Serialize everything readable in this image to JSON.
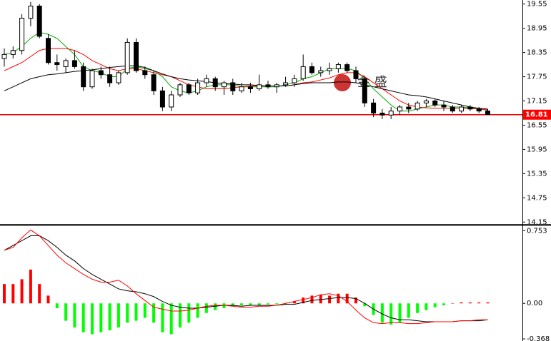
{
  "chart_data": [
    {
      "type": "candlestick",
      "watermark": "金 盛",
      "ylim": [
        14.12,
        19.65
      ],
      "yticks": [
        19.55,
        18.95,
        18.35,
        17.75,
        17.15,
        16.55,
        15.95,
        15.35,
        14.75,
        14.15
      ],
      "price_line": 16.81,
      "price_line_color": "#ff0000",
      "open": [
        18.2,
        18.3,
        18.4,
        19.2,
        19.5,
        18.7,
        18.1,
        18.0,
        18.15,
        18.0,
        17.5,
        17.9,
        17.8,
        17.6,
        17.85,
        18.6,
        17.9,
        17.8,
        17.4,
        17.0,
        17.3,
        17.55,
        17.35,
        17.6,
        17.7,
        17.5,
        17.6,
        17.4,
        17.5,
        17.45,
        17.55,
        17.5,
        17.55,
        17.6,
        17.7,
        18.0,
        17.85,
        17.9,
        17.95,
        18.05,
        17.9,
        17.7,
        17.1,
        16.85,
        16.8,
        16.9,
        17.0,
        16.95,
        17.1,
        17.15,
        17.05,
        17.0,
        16.9,
        17.0,
        16.95,
        16.9
      ],
      "high": [
        18.45,
        18.5,
        19.3,
        19.6,
        19.55,
        18.8,
        18.3,
        18.2,
        18.4,
        18.1,
        17.95,
        18.0,
        18.0,
        17.9,
        18.7,
        18.7,
        18.0,
        17.9,
        17.5,
        17.4,
        17.6,
        17.6,
        17.7,
        17.8,
        17.75,
        17.65,
        17.7,
        17.6,
        17.6,
        17.8,
        17.65,
        17.6,
        17.75,
        17.8,
        18.3,
        18.1,
        18.0,
        18.1,
        18.1,
        18.1,
        18.0,
        17.75,
        17.2,
        16.95,
        17.0,
        17.05,
        17.1,
        17.15,
        17.2,
        17.2,
        17.15,
        17.05,
        17.05,
        17.05,
        17.0,
        16.95
      ],
      "low": [
        18.0,
        18.2,
        18.3,
        19.0,
        18.7,
        18.05,
        17.9,
        17.85,
        17.95,
        17.4,
        17.45,
        17.7,
        17.5,
        17.55,
        17.8,
        17.85,
        17.7,
        17.3,
        16.9,
        16.9,
        17.25,
        17.3,
        17.3,
        17.5,
        17.4,
        17.3,
        17.3,
        17.35,
        17.35,
        17.4,
        17.45,
        17.35,
        17.5,
        17.5,
        17.65,
        17.8,
        17.75,
        17.8,
        17.85,
        17.85,
        17.6,
        17.0,
        16.75,
        16.7,
        16.7,
        16.8,
        16.85,
        16.9,
        17.0,
        17.0,
        16.9,
        16.85,
        16.85,
        16.9,
        16.85,
        16.8
      ],
      "close": [
        18.3,
        18.4,
        19.2,
        19.5,
        18.75,
        18.1,
        18.05,
        18.15,
        18.0,
        17.5,
        17.9,
        17.8,
        17.6,
        17.85,
        18.6,
        17.9,
        17.8,
        17.4,
        17.0,
        17.3,
        17.55,
        17.35,
        17.6,
        17.7,
        17.5,
        17.6,
        17.4,
        17.5,
        17.45,
        17.55,
        17.5,
        17.55,
        17.6,
        17.7,
        18.0,
        17.85,
        17.9,
        17.95,
        18.05,
        17.9,
        17.7,
        17.1,
        16.85,
        16.8,
        16.9,
        17.0,
        16.95,
        17.1,
        17.15,
        17.05,
        17.0,
        16.9,
        17.0,
        16.95,
        16.9,
        16.81
      ],
      "series": [
        {
          "color": "#00aa00",
          "values": [
            18.3,
            18.35,
            18.5,
            18.7,
            18.85,
            18.8,
            18.7,
            18.5,
            18.3,
            18.0,
            17.9,
            17.85,
            17.75,
            17.75,
            17.95,
            18.0,
            17.95,
            17.9,
            17.75,
            17.5,
            17.4,
            17.35,
            17.4,
            17.5,
            17.55,
            17.55,
            17.55,
            17.5,
            17.5,
            17.5,
            17.5,
            17.5,
            17.55,
            17.6,
            17.7,
            17.75,
            17.85,
            17.95,
            17.95,
            17.95,
            17.9,
            17.7,
            17.45,
            17.25,
            17.05,
            16.9,
            16.9,
            16.95,
            17.0,
            17.05,
            17.05,
            17.0,
            17.0,
            16.98,
            16.95,
            16.92
          ]
        },
        {
          "color": "#ff0000",
          "values": [
            17.9,
            18.0,
            18.1,
            18.25,
            18.4,
            18.45,
            18.45,
            18.45,
            18.4,
            18.3,
            18.15,
            18.05,
            17.95,
            17.9,
            17.95,
            17.95,
            17.9,
            17.85,
            17.8,
            17.75,
            17.65,
            17.55,
            17.5,
            17.45,
            17.45,
            17.45,
            17.48,
            17.5,
            17.52,
            17.52,
            17.52,
            17.52,
            17.52,
            17.55,
            17.6,
            17.62,
            17.67,
            17.72,
            17.8,
            17.85,
            17.85,
            17.75,
            17.6,
            17.45,
            17.3,
            17.15,
            17.05,
            17.0,
            16.98,
            16.97,
            16.97,
            16.97,
            16.97,
            16.96,
            16.95,
            16.93
          ]
        },
        {
          "color": "#000000",
          "values": [
            17.4,
            17.5,
            17.6,
            17.7,
            17.75,
            17.8,
            17.82,
            17.85,
            17.88,
            17.9,
            17.92,
            17.95,
            17.98,
            18.0,
            18.02,
            18.02,
            17.98,
            17.9,
            17.82,
            17.75,
            17.7,
            17.67,
            17.65,
            17.63,
            17.6,
            17.58,
            17.57,
            17.55,
            17.55,
            17.53,
            17.52,
            17.52,
            17.52,
            17.55,
            17.58,
            17.6,
            17.6,
            17.6,
            17.62,
            17.62,
            17.6,
            17.55,
            17.5,
            17.45,
            17.4,
            17.35,
            17.3,
            17.28,
            17.25,
            17.2,
            17.15,
            17.1,
            17.05,
            17.0,
            16.97,
            16.95
          ]
        }
      ]
    },
    {
      "type": "macd",
      "ylim": [
        -0.39,
        0.8
      ],
      "yticks": [
        0.753,
        {
          "value": 0,
          "label": "0.00"
        },
        -0.368
      ],
      "up_color": "#ff0000",
      "down_color": "#00ff00",
      "histogram": [
        0.2,
        0.2,
        0.25,
        0.35,
        0.2,
        0.08,
        -0.05,
        -0.18,
        -0.25,
        -0.3,
        -0.32,
        -0.3,
        -0.28,
        -0.25,
        -0.2,
        -0.18,
        -0.15,
        -0.2,
        -0.3,
        -0.32,
        -0.25,
        -0.2,
        -0.15,
        -0.1,
        -0.07,
        -0.05,
        -0.03,
        -0.02,
        -0.02,
        -0.02,
        -0.01,
        -0.01,
        -0.01,
        0.02,
        0.06,
        0.08,
        0.09,
        0.08,
        0.1,
        0.1,
        0.06,
        -0.03,
        -0.12,
        -0.2,
        -0.22,
        -0.2,
        -0.15,
        -0.1,
        -0.07,
        -0.04,
        -0.02,
        0.0,
        0.01,
        0.01,
        0.01,
        0.01
      ],
      "series": [
        {
          "color": "#000000",
          "values": [
            0.55,
            0.6,
            0.65,
            0.7,
            0.7,
            0.65,
            0.58,
            0.5,
            0.44,
            0.36,
            0.3,
            0.25,
            0.2,
            0.15,
            0.13,
            0.12,
            0.1,
            0.07,
            0.02,
            -0.02,
            -0.04,
            -0.05,
            -0.05,
            -0.04,
            -0.03,
            -0.02,
            -0.02,
            -0.03,
            -0.02,
            -0.02,
            -0.02,
            -0.02,
            -0.01,
            -0.01,
            0.01,
            0.03,
            0.04,
            0.05,
            0.06,
            0.06,
            0.05,
            0.0,
            -0.06,
            -0.11,
            -0.15,
            -0.17,
            -0.17,
            -0.18,
            -0.19,
            -0.19,
            -0.19,
            -0.19,
            -0.18,
            -0.18,
            -0.18,
            -0.17
          ]
        },
        {
          "color": "#ff0000",
          "values": [
            0.55,
            0.58,
            0.68,
            0.76,
            0.7,
            0.6,
            0.5,
            0.42,
            0.36,
            0.3,
            0.25,
            0.22,
            0.22,
            0.24,
            0.18,
            0.1,
            0.03,
            -0.04,
            -0.06,
            -0.08,
            -0.08,
            -0.07,
            -0.05,
            -0.03,
            -0.02,
            -0.02,
            -0.03,
            -0.04,
            -0.04,
            -0.03,
            -0.03,
            -0.02,
            0.0,
            0.02,
            0.04,
            0.06,
            0.09,
            0.1,
            0.08,
            0.02,
            -0.07,
            -0.15,
            -0.2,
            -0.21,
            -0.2,
            -0.2,
            -0.21,
            -0.21,
            -0.2,
            -0.19,
            -0.19,
            -0.19,
            -0.18,
            -0.18,
            -0.17,
            -0.17
          ]
        }
      ]
    }
  ]
}
